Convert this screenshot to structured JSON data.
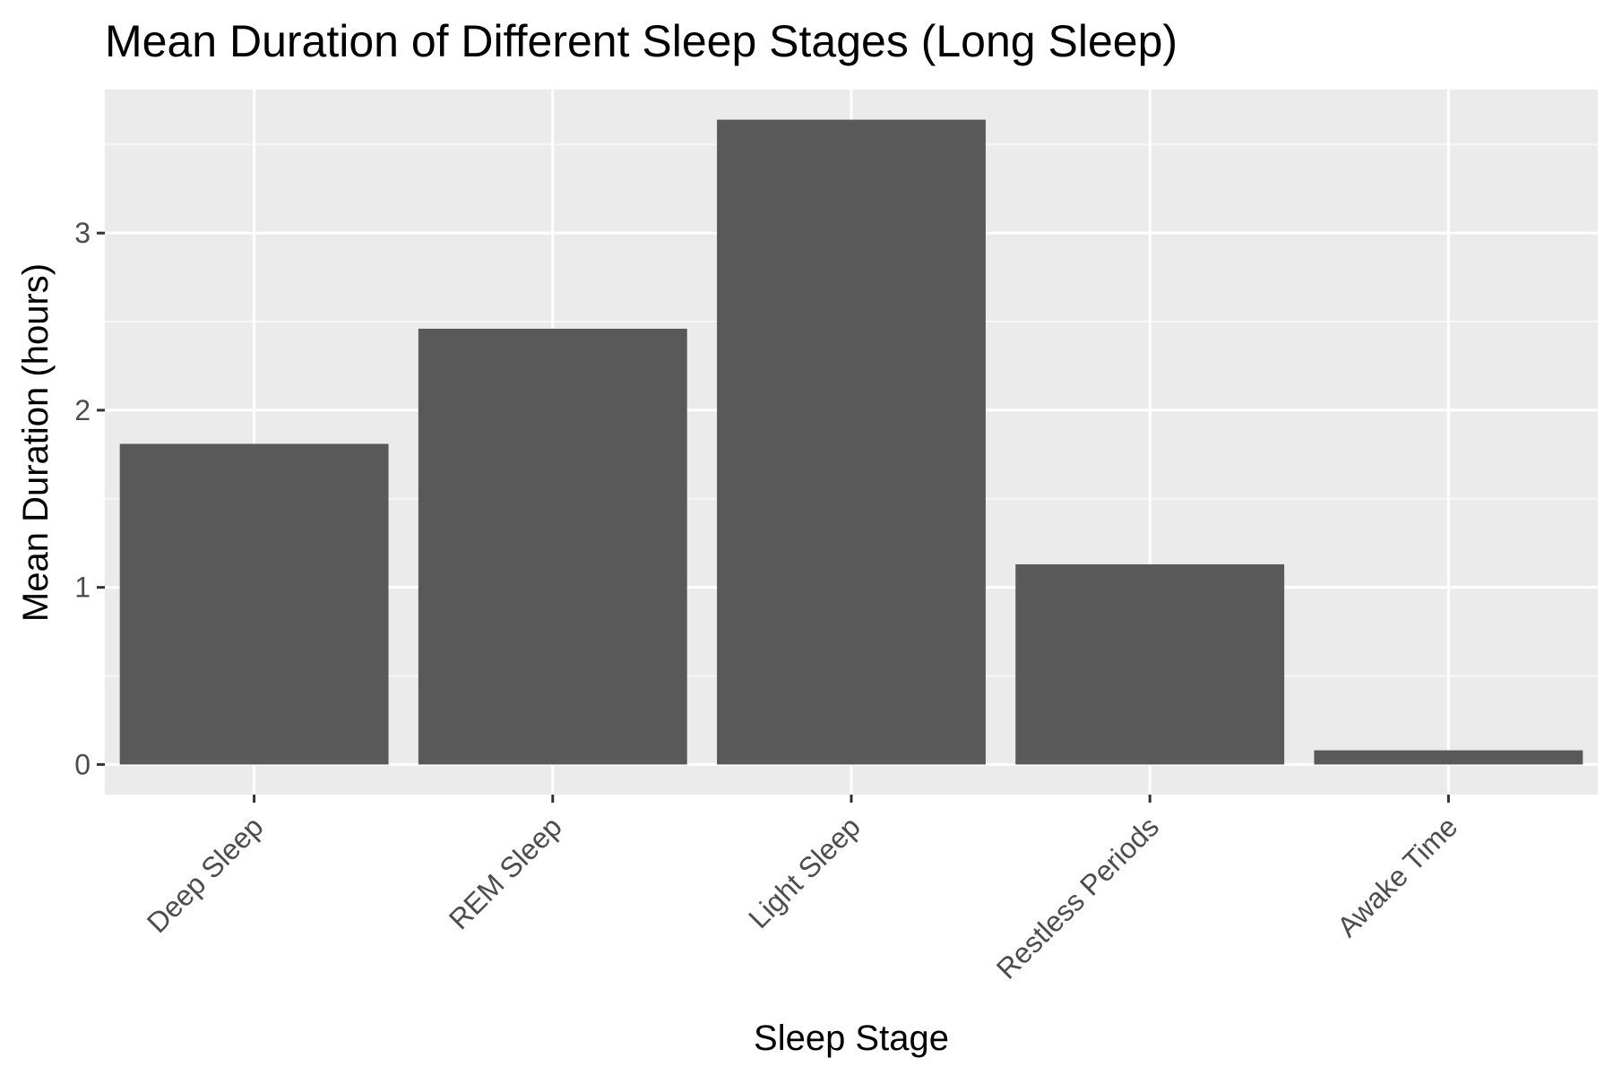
{
  "chart_data": {
    "type": "bar",
    "title": "Mean Duration of Different Sleep Stages (Long Sleep)",
    "xlabel": "Sleep Stage",
    "ylabel": "Mean Duration (hours)",
    "categories": [
      "Deep Sleep",
      "REM Sleep",
      "Light Sleep",
      "Restless Periods",
      "Awake Time"
    ],
    "values": [
      1.81,
      2.46,
      3.64,
      1.13,
      0.08
    ],
    "ylim": [
      -0.17,
      3.81
    ],
    "yticks": [
      0,
      1,
      2,
      3
    ],
    "ytick_labels": [
      "0",
      "1",
      "2",
      "3"
    ],
    "grid": true,
    "legend": "none",
    "colors": {
      "bar": "#595959",
      "panel_background": "#ebebeb",
      "grid_major": "#ffffff",
      "grid_minor": "#f7f7f7",
      "tick": "#333333"
    }
  }
}
